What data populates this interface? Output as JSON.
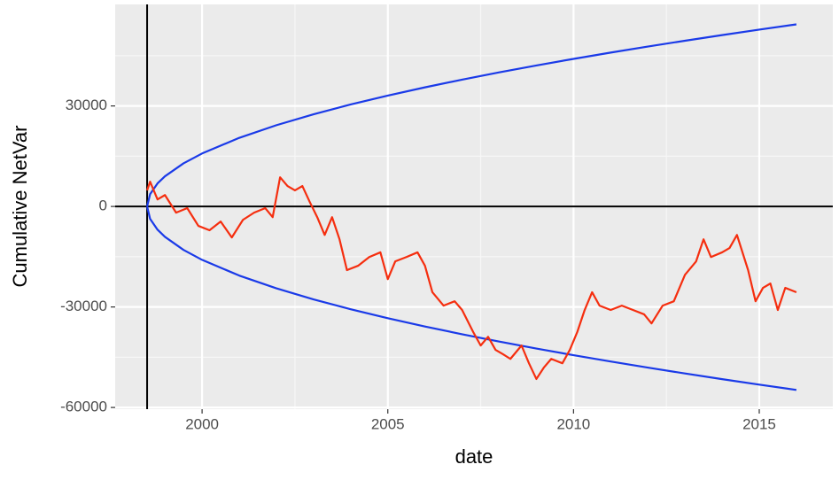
{
  "chart_data": {
    "type": "line",
    "xlabel": "date",
    "ylabel": "Cumulative NetVar",
    "xlim": [
      1997.66,
      2016.98
    ],
    "ylim": [
      -60500,
      60300
    ],
    "xticks": [
      2000,
      2005,
      2010,
      2015
    ],
    "yticks": [
      -60000,
      -30000,
      0,
      30000
    ],
    "grid": true,
    "background": "#ebebeb",
    "hline": 0,
    "vline": 1998.52,
    "series": [
      {
        "color": "#1a3ae8",
        "x": [
          1998.52,
          1998.6,
          1998.8,
          1999,
          1999.5,
          2000,
          2001,
          2002,
          2003,
          2004,
          2005,
          2006,
          2007,
          2008,
          2009,
          2010,
          2011,
          2012,
          2013,
          2014,
          2015,
          2016
        ],
        "values": [
          0,
          3677,
          6879,
          9007,
          12869,
          15815,
          20472,
          24251,
          27516,
          30432,
          33093,
          35554,
          37856,
          40026,
          42085,
          44047,
          45925,
          47730,
          49468,
          51148,
          52774,
          54352
        ]
      },
      {
        "color": "#1a3ae8",
        "x": [
          1998.52,
          1998.6,
          1998.8,
          1999,
          1999.5,
          2000,
          2001,
          2002,
          2003,
          2004,
          2005,
          2006,
          2007,
          2008,
          2009,
          2010,
          2011,
          2012,
          2013,
          2014,
          2015,
          2016
        ],
        "values": [
          0,
          -3705,
          -6932,
          -9076,
          -12968,
          -15937,
          -20630,
          -24438,
          -27728,
          -30666,
          -33347,
          -35828,
          -38148,
          -40334,
          -42409,
          -44386,
          -46278,
          -48097,
          -49849,
          -51542,
          -53180,
          -54770
        ]
      },
      {
        "color": "#f52e0f",
        "x": [
          1998.52,
          1998.6,
          1998.8,
          1999,
          1999.3,
          1999.6,
          1999.9,
          2000.2,
          2000.5,
          2000.8,
          2001.1,
          2001.4,
          2001.7,
          2001.9,
          2002.1,
          2002.3,
          2002.5,
          2002.7,
          2002.9,
          2003.1,
          2003.3,
          2003.5,
          2003.7,
          2003.9,
          2004.2,
          2004.5,
          2004.8,
          2005.0,
          2005.2,
          2005.5,
          2005.8,
          2006.0,
          2006.2,
          2006.5,
          2006.8,
          2007.0,
          2007.3,
          2007.5,
          2007.7,
          2007.9,
          2008.1,
          2008.3,
          2008.6,
          2008.8,
          2009.0,
          2009.2,
          2009.4,
          2009.7,
          2009.9,
          2010.1,
          2010.3,
          2010.5,
          2010.7,
          2011.0,
          2011.3,
          2011.6,
          2011.9,
          2012.1,
          2012.4,
          2012.7,
          2013.0,
          2013.3,
          2013.5,
          2013.7,
          2014.0,
          2014.2,
          2014.4,
          2014.7,
          2014.9,
          2015.1,
          2015.3,
          2015.5,
          2015.7,
          2016.0
        ],
        "values": [
          4800,
          7400,
          2100,
          3400,
          -1850,
          -500,
          -5800,
          -7100,
          -4500,
          -9250,
          -4000,
          -1850,
          -500,
          -3200,
          8700,
          6100,
          4800,
          6100,
          1300,
          -3200,
          -8500,
          -3200,
          -9800,
          -19000,
          -17700,
          -15100,
          -13700,
          -21700,
          -16400,
          -15100,
          -13700,
          -17700,
          -25600,
          -29600,
          -28300,
          -30900,
          -37500,
          -41500,
          -38900,
          -42800,
          -44100,
          -45500,
          -41500,
          -46800,
          -51500,
          -48100,
          -45500,
          -46800,
          -42800,
          -37500,
          -30900,
          -25600,
          -29600,
          -30900,
          -29600,
          -30900,
          -32200,
          -34900,
          -29600,
          -28300,
          -20400,
          -16400,
          -9800,
          -15100,
          -13700,
          -12400,
          -8500,
          -19000,
          -28300,
          -24300,
          -23000,
          -30900,
          -24300,
          -25600
        ]
      }
    ]
  }
}
